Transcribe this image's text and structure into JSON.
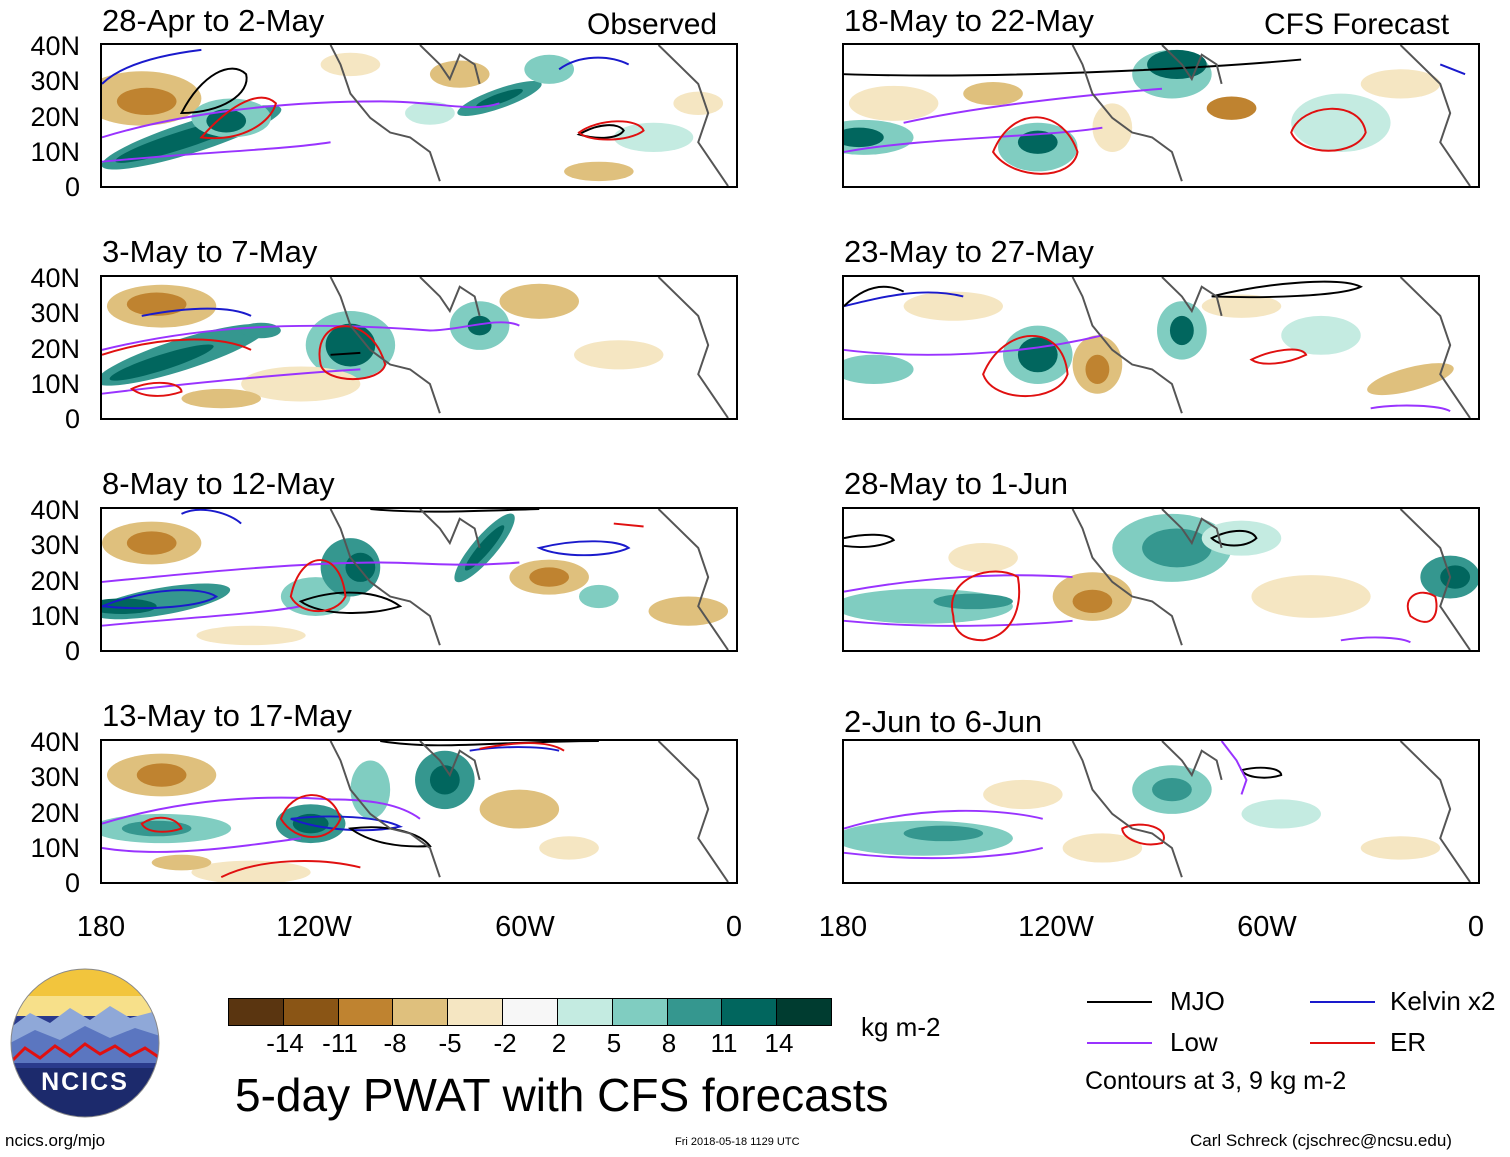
{
  "columns": {
    "left_label": "Observed",
    "right_label": "CFS Forecast"
  },
  "panels": [
    {
      "title": "28-Apr to 2-May"
    },
    {
      "title": "18-May to 22-May"
    },
    {
      "title": "3-May to 7-May"
    },
    {
      "title": "23-May to 27-May"
    },
    {
      "title": "8-May to 12-May"
    },
    {
      "title": "28-May to 1-Jun"
    },
    {
      "title": "13-May to 17-May"
    },
    {
      "title": "2-Jun to 6-Jun"
    }
  ],
  "axes": {
    "lat_labels": [
      "40N",
      "30N",
      "20N",
      "10N",
      "0"
    ],
    "lon_labels": [
      "180",
      "120W",
      "60W",
      "0"
    ]
  },
  "colorbar": {
    "labels": [
      "-14",
      "-11",
      "-8",
      "-5",
      "-2",
      "2",
      "5",
      "8",
      "11",
      "14"
    ],
    "colors": [
      "#5a3510",
      "#8a5515",
      "#bf8330",
      "#dfc07d",
      "#f5e6c2",
      "#f7f7f7",
      "#c4ebe1",
      "#80cdc1",
      "#35978f",
      "#01665e",
      "#003c30"
    ],
    "units": "kg m-2"
  },
  "title": "5-day PWAT with CFS forecasts",
  "legend": {
    "items": [
      {
        "label": "MJO",
        "color": "#000000"
      },
      {
        "label": "Kelvin x2",
        "color": "#1a1acc"
      },
      {
        "label": "Low",
        "color": "#9933ff"
      },
      {
        "label": "ER",
        "color": "#e01010"
      }
    ],
    "note": "Contours at 3, 9 kg m-2"
  },
  "logo": {
    "text": "NCICS"
  },
  "footer": {
    "url": "ncics.org/mjo",
    "timestamp": "Fri 2018-05-18 1129 UTC",
    "credit": "Carl Schreck (cjschrec@ncsu.edu)"
  }
}
